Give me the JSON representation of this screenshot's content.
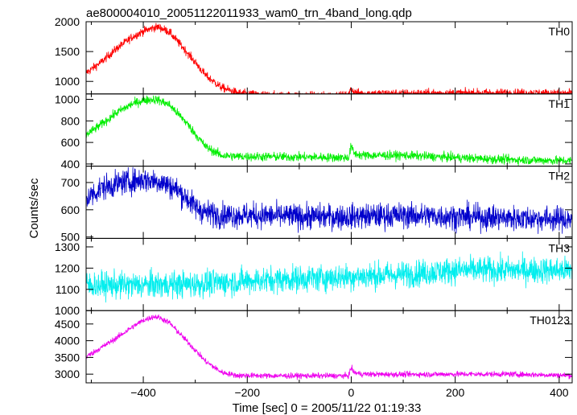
{
  "title": "ae800004010_20051122011933_wam0_trn_4band_long.qdp",
  "xlabel": "Time [sec] 0 = 2005/11/22 01:19:33",
  "ylabel": "Counts/sec",
  "chart_data": {
    "type": "line",
    "title": "ae800004010_20051122011933_wam0_trn_4band_long.qdp",
    "xlabel": "Time [sec] 0 = 2005/11/22 01:19:33",
    "ylabel": "Counts/sec",
    "xlim": [
      -510,
      425
    ],
    "xticks": [
      -400,
      -200,
      0,
      200,
      400
    ],
    "grid": false,
    "panels": [
      {
        "name": "TH0",
        "color": "#ff0000",
        "ylim": [
          790,
          2000
        ],
        "yticks": [
          1000,
          1500,
          2000
        ],
        "noise": 50,
        "x": [
          -510,
          -480,
          -450,
          -420,
          -400,
          -380,
          -370,
          -350,
          -320,
          -300,
          -280,
          -250,
          -220,
          -200,
          -150,
          -50,
          -5,
          0,
          5,
          20,
          100,
          200,
          300,
          425
        ],
        "values": [
          1140,
          1330,
          1560,
          1750,
          1840,
          1900,
          1910,
          1830,
          1530,
          1320,
          1100,
          900,
          810,
          790,
          765,
          760,
          765,
          890,
          820,
          800,
          800,
          805,
          810,
          800
        ]
      },
      {
        "name": "TH1",
        "color": "#00ee00",
        "ylim": [
          380,
          1050
        ],
        "yticks": [
          400,
          600,
          800,
          1000
        ],
        "noise": 30,
        "x": [
          -510,
          -480,
          -450,
          -420,
          -400,
          -380,
          -370,
          -350,
          -320,
          -300,
          -280,
          -250,
          -220,
          -200,
          -100,
          -5,
          0,
          5,
          20,
          100,
          200,
          300,
          425
        ],
        "values": [
          670,
          770,
          880,
          960,
          990,
          1000,
          990,
          950,
          800,
          680,
          560,
          480,
          470,
          470,
          465,
          460,
          570,
          500,
          480,
          480,
          460,
          440,
          430
        ]
      },
      {
        "name": "TH2",
        "color": "#0000cc",
        "ylim": [
          495,
          760
        ],
        "yticks": [
          500,
          600,
          700
        ],
        "noise": 33,
        "x": [
          -510,
          -480,
          -440,
          -400,
          -370,
          -340,
          -320,
          -300,
          -280,
          -250,
          -200,
          -100,
          0,
          100,
          200,
          300,
          425
        ],
        "values": [
          640,
          680,
          700,
          710,
          705,
          680,
          650,
          610,
          590,
          580,
          580,
          575,
          575,
          580,
          575,
          570,
          565
        ]
      },
      {
        "name": "TH3",
        "color": "#00eeee",
        "ylim": [
          1000,
          1340
        ],
        "yticks": [
          1000,
          1100,
          1200,
          1300
        ],
        "noise": 45,
        "x": [
          -510,
          -400,
          -300,
          -200,
          -100,
          0,
          100,
          200,
          300,
          425
        ],
        "values": [
          1120,
          1120,
          1125,
          1140,
          1150,
          1160,
          1170,
          1190,
          1190,
          1190
        ]
      },
      {
        "name": "TH0123",
        "color": "#ee00ee",
        "ylim": [
          2740,
          4900
        ],
        "yticks": [
          3000,
          3500,
          4000,
          4500
        ],
        "noise": 60,
        "x": [
          -510,
          -480,
          -450,
          -420,
          -400,
          -380,
          -370,
          -350,
          -320,
          -300,
          -280,
          -250,
          -220,
          -200,
          -150,
          -50,
          -5,
          0,
          5,
          20,
          100,
          200,
          300,
          425
        ],
        "values": [
          3520,
          3800,
          4100,
          4420,
          4610,
          4720,
          4700,
          4540,
          4050,
          3720,
          3380,
          3060,
          2960,
          2960,
          2950,
          2950,
          2950,
          3200,
          3050,
          3000,
          2990,
          3000,
          3000,
          2960
        ]
      }
    ]
  }
}
